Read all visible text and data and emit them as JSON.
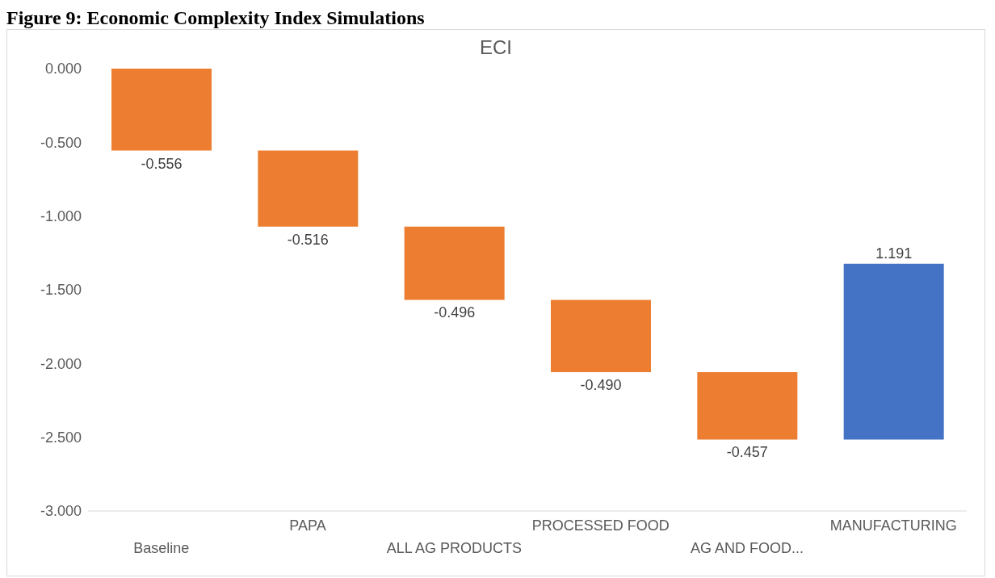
{
  "chart_data": {
    "type": "bar",
    "title": "Figure 9: Economic Complexity Index Simulations",
    "subtitle": "ECI",
    "categories": [
      "Baseline",
      "PAPA",
      "ALL AG PRODUCTS",
      "PROCESSED FOOD",
      "AG AND FOOD...",
      "MANUFACTURING"
    ],
    "values": [
      -0.556,
      -0.516,
      -0.496,
      -0.49,
      -0.457,
      1.191
    ],
    "base": [
      0,
      -0.556,
      -1.072,
      -1.568,
      -2.058,
      -2.515
    ],
    "colors": [
      "#ed7d31",
      "#ed7d31",
      "#ed7d31",
      "#ed7d31",
      "#ed7d31",
      "#4472c4"
    ],
    "value_labels": [
      "-0.556",
      "-0.516",
      "-0.496",
      "-0.490",
      "-0.457",
      "1.191"
    ],
    "ylim": [
      -3,
      0
    ],
    "yticks": [
      {
        "value": 0,
        "label": "0.000"
      },
      {
        "value": -0.5,
        "label": "-0.500"
      },
      {
        "value": -1,
        "label": "-1.000"
      },
      {
        "value": -1.5,
        "label": "-1.500"
      },
      {
        "value": -2,
        "label": "-2.000"
      },
      {
        "value": -2.5,
        "label": "-2.500"
      },
      {
        "value": -3,
        "label": "-3.000"
      }
    ],
    "grid": false,
    "legend": false
  }
}
